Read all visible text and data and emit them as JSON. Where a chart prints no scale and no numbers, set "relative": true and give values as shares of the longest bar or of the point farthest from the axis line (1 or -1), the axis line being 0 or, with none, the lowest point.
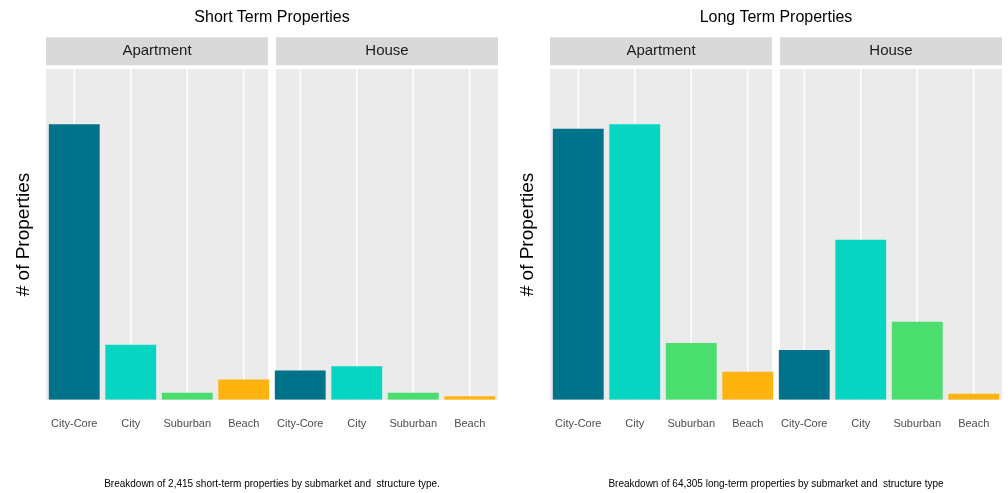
{
  "chart_data": [
    {
      "type": "bar",
      "title": "Short Term Properties",
      "ylabel": "# of Properties",
      "relative": true,
      "grid": "x",
      "categories": [
        "City-Core",
        "City",
        "Suburban",
        "Beach",
        "City-Core",
        "City",
        "Suburban",
        "Beach"
      ],
      "values": [
        1,
        0.2,
        0.026,
        0.074,
        0.106,
        0.122,
        0.026,
        0.013
      ],
      "colors": [
        "#00728a",
        "#06d6c1",
        "#4ade6e",
        "#ffb30f",
        "#00728a",
        "#06d6c1",
        "#4ade6e",
        "#ffb30f"
      ],
      "annotations": [
        "Apartment",
        "House",
        "Breakdown of 2,415 short-term properties by submarket and  structure type."
      ]
    },
    {
      "type": "bar",
      "title": "Long Term Properties",
      "ylabel": "# of Properties",
      "relative": true,
      "grid": "x",
      "categories": [
        "City-Core",
        "City",
        "Suburban",
        "Beach",
        "City-Core",
        "City",
        "Suburban",
        "Beach"
      ],
      "values": [
        0.984,
        1,
        0.206,
        0.102,
        0.181,
        0.581,
        0.283,
        0.022
      ],
      "colors": [
        "#00728a",
        "#06d6c1",
        "#4ade6e",
        "#ffb30f",
        "#00728a",
        "#06d6c1",
        "#4ade6e",
        "#ffb30f"
      ],
      "annotations": [
        "Apartment",
        "House",
        "Breakdown of 64,305 long-term properties by submarket and  structure type"
      ]
    }
  ]
}
